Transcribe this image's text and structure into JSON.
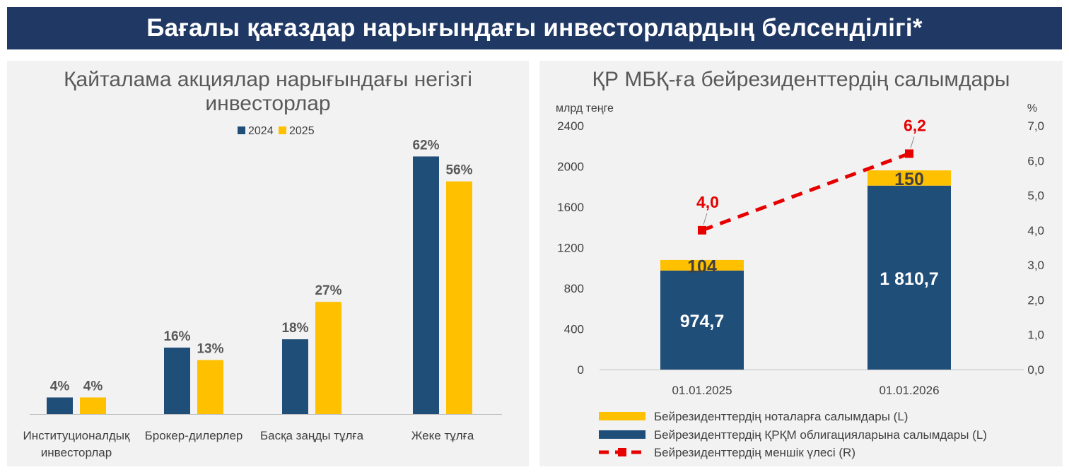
{
  "header": {
    "title": "Бағалы қағаздар нарығындағы инвесторлардың белсенділігі*"
  },
  "colors": {
    "navy": "#1f4e79",
    "gold": "#ffc000",
    "banner": "#1f3864",
    "red": "#e60000",
    "panel_bg": "#f2f2f2"
  },
  "chart_data": [
    {
      "type": "bar",
      "title": "Қайталама акциялар нарығындағы негізгі инвесторлар",
      "categories": [
        "Институционалдық инвесторлар",
        "Брокер-дилерлер",
        "Басқа заңды тұлға",
        "Жеке тұлға"
      ],
      "series": [
        {
          "name": "2024",
          "values": [
            4,
            16,
            18,
            62
          ],
          "labels": [
            "4%",
            "16%",
            "18%",
            "62%"
          ],
          "color": "#1f4e79"
        },
        {
          "name": "2025",
          "values": [
            4,
            13,
            27,
            56
          ],
          "labels": [
            "4%",
            "13%",
            "27%",
            "56%"
          ],
          "color": "#ffc000"
        }
      ],
      "legend": "top-center",
      "grid": false
    },
    {
      "type": "bar",
      "stacked": true,
      "title": "ҚР МБҚ-ға бейрезиденттердің салымдары",
      "categories": [
        "01.01.2025",
        "01.01.2026"
      ],
      "ylabel": "млрд теңге",
      "y2label": "%",
      "ylim": [
        0,
        2400
      ],
      "y2lim": [
        0,
        7
      ],
      "yticks": [
        "0",
        "400",
        "800",
        "1200",
        "1600",
        "2000",
        "2400"
      ],
      "y2ticks": [
        "0,0",
        "1,0",
        "2,0",
        "3,0",
        "4,0",
        "5,0",
        "6,0",
        "7,0"
      ],
      "series": [
        {
          "name": "Бейрезиденттердің ҚРҚМ облигацияларына салымдары (L)",
          "type": "bar",
          "values": [
            974.7,
            1810.7
          ],
          "labels": [
            "974,7",
            "1 810,7"
          ],
          "color": "#1f4e79"
        },
        {
          "name": "Бейрезиденттердің ноталарға салымдары (L)",
          "type": "bar",
          "values": [
            104,
            150
          ],
          "labels": [
            "104",
            "150"
          ],
          "color": "#ffc000"
        },
        {
          "name": "Бейрезиденттердің меншік үлесі (R)",
          "type": "line",
          "axis": "right",
          "values": [
            4.0,
            6.2
          ],
          "labels": [
            "4,0",
            "6,2"
          ],
          "color": "#e60000"
        }
      ],
      "legend_order": [
        "Бейрезиденттердің ноталарға салымдары (L)",
        "Бейрезиденттердің ҚРҚМ облигацияларына салымдары (L)",
        "Бейрезиденттердің меншік үлесі (R)"
      ],
      "legend": "bottom",
      "grid": false
    }
  ]
}
